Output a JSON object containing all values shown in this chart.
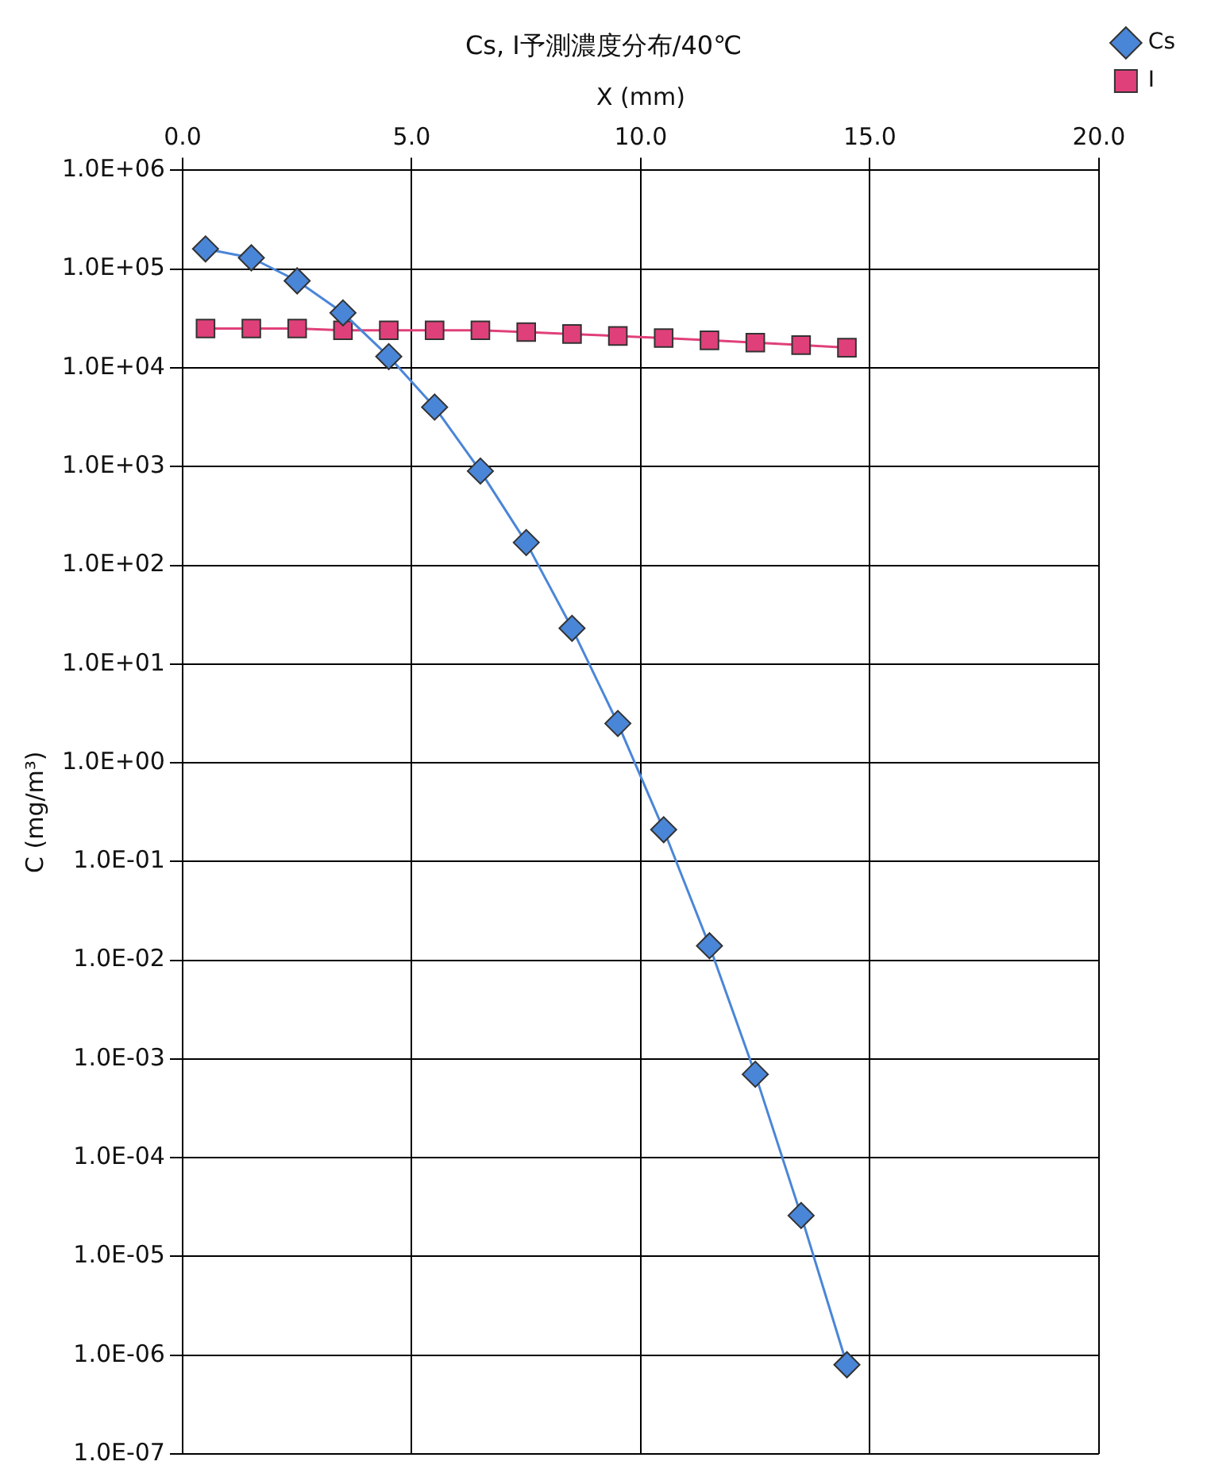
{
  "chart_data": {
    "type": "line",
    "title": "Cs, I予測濃度分布/40℃",
    "xlabel": "X (mm)",
    "ylabel": "C (mg/m³)",
    "x": [
      0.5,
      1.5,
      2.5,
      3.5,
      4.5,
      5.5,
      6.5,
      7.5,
      8.5,
      9.5,
      10.5,
      11.5,
      12.5,
      13.5,
      14.5
    ],
    "series": [
      {
        "name": "Cs",
        "color": "#4a86d8",
        "marker": "diamond",
        "values": [
          160000,
          130000,
          76000,
          36000,
          13000,
          4000,
          900,
          170,
          23,
          2.5,
          0.21,
          0.014,
          0.0007,
          2.6e-05,
          8e-07
        ]
      },
      {
        "name": "I",
        "color": "#e0407a",
        "marker": "square",
        "values": [
          25000,
          25000,
          25000,
          24000,
          24000,
          24000,
          24000,
          23000,
          22000,
          21000,
          20000,
          19000,
          18000,
          17000,
          16000
        ]
      }
    ],
    "log": "y",
    "xlim": [
      0,
      20
    ],
    "xticks": [
      {
        "value": 0,
        "label": "0.0"
      },
      {
        "value": 5,
        "label": "5.0"
      },
      {
        "value": 10,
        "label": "10.0"
      },
      {
        "value": 15,
        "label": "15.0"
      },
      {
        "value": 20,
        "label": "20.0"
      }
    ],
    "ylim": [
      1e-07,
      1000000.0
    ],
    "yticks": [
      {
        "value": 1e-07,
        "label": "1.0E-07"
      },
      {
        "value": 1e-06,
        "label": "1.0E-06"
      },
      {
        "value": 1e-05,
        "label": "1.0E-05"
      },
      {
        "value": 0.0001,
        "label": "1.0E-04"
      },
      {
        "value": 0.001,
        "label": "1.0E-03"
      },
      {
        "value": 0.01,
        "label": "1.0E-02"
      },
      {
        "value": 0.1,
        "label": "1.0E-01"
      },
      {
        "value": 1,
        "label": "1.0E+00"
      },
      {
        "value": 10,
        "label": "1.0E+01"
      },
      {
        "value": 100,
        "label": "1.0E+02"
      },
      {
        "value": 1000,
        "label": "1.0E+03"
      },
      {
        "value": 10000,
        "label": "1.0E+04"
      },
      {
        "value": 100000,
        "label": "1.0E+05"
      },
      {
        "value": 1000000,
        "label": "1.0E+06"
      }
    ],
    "grid": true,
    "legend": "top right",
    "line_style": "solid"
  }
}
